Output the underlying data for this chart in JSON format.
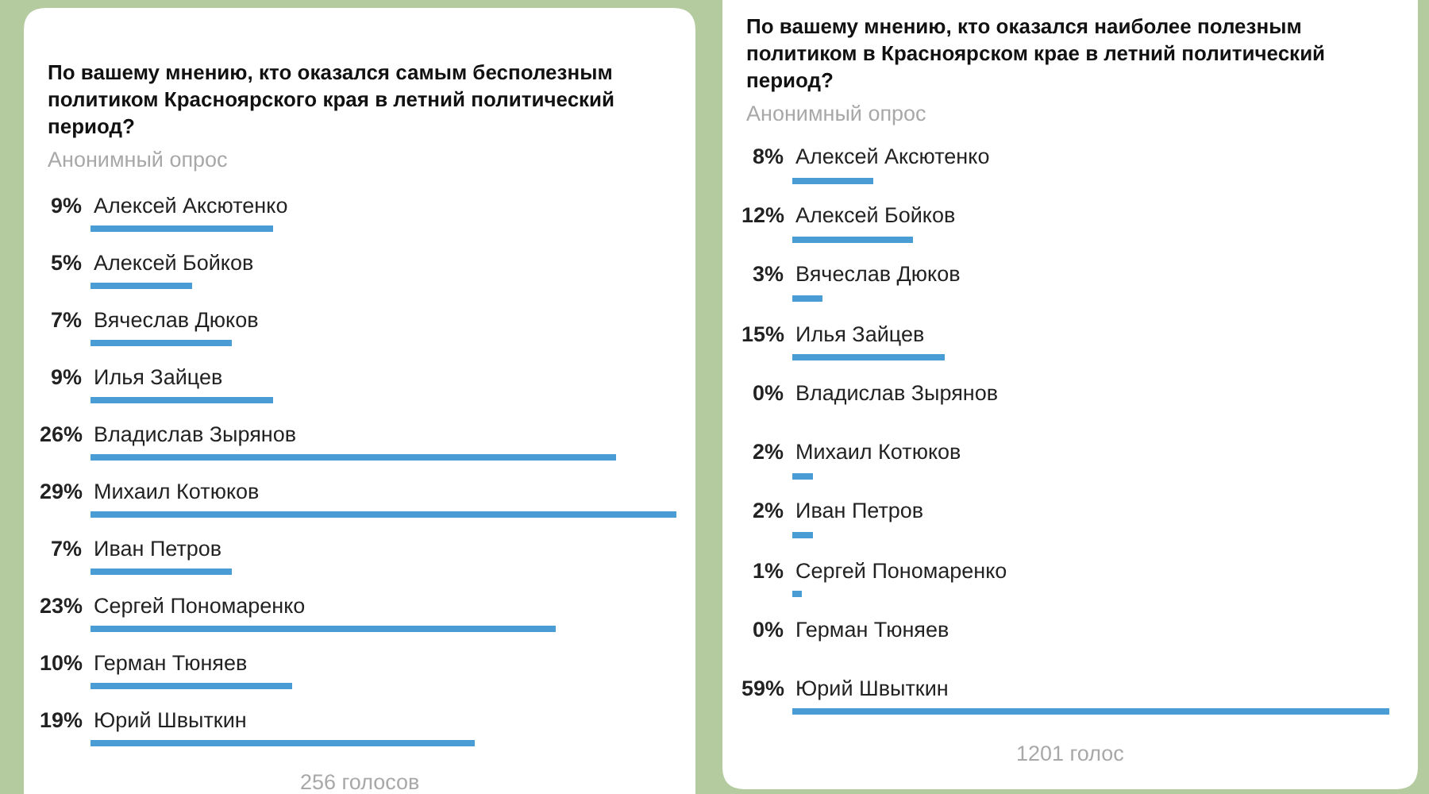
{
  "chart_data": [
    {
      "type": "bar",
      "orientation": "horizontal",
      "title": "По вашему мнению, кто оказался самым бесполезным политиком Красноярского края в летний политический период?",
      "subtitle": "Анонимный опрос",
      "tick_labels": "y",
      "color": "#4a9dd4",
      "categories": [
        "Алексей Аксютенко",
        "Алексей Бойков",
        "Вячеслав Дюков",
        "Илья Зайцев",
        "Владислав Зырянов",
        "Михаил Котюков",
        "Иван Петров",
        "Сергей Пономаренко",
        "Герман Тюняев",
        "Юрий Швыткин"
      ],
      "values": [
        9,
        5,
        7,
        9,
        26,
        29,
        7,
        23,
        10,
        19
      ],
      "value_labels": [
        "9%",
        "5%",
        "7%",
        "9%",
        "26%",
        "29%",
        "7%",
        "23%",
        "10%",
        "19%"
      ],
      "annotations": [
        "256 голосов"
      ]
    },
    {
      "type": "bar",
      "orientation": "horizontal",
      "title": "По вашему мнению, кто оказался наиболее полезным политиком в Красноярском крае в летний политический период?",
      "subtitle": "Анонимный опрос",
      "tick_labels": "y",
      "color": "#4a9dd4",
      "categories": [
        "Алексей Аксютенко",
        "Алексей Бойков",
        "Вячеслав Дюков",
        "Илья Зайцев",
        "Владислав Зырянов",
        "Михаил Котюков",
        "Иван Петров",
        "Сергей Пономаренко",
        "Герман Тюняев",
        "Юрий Швыткин"
      ],
      "values": [
        8,
        12,
        3,
        15,
        0,
        2,
        2,
        1,
        0,
        59
      ],
      "value_labels": [
        "8%",
        "12%",
        "3%",
        "15%",
        "0%",
        "2%",
        "2%",
        "1%",
        "0%",
        "59%"
      ],
      "annotations": [
        "1201 голос"
      ]
    }
  ]
}
